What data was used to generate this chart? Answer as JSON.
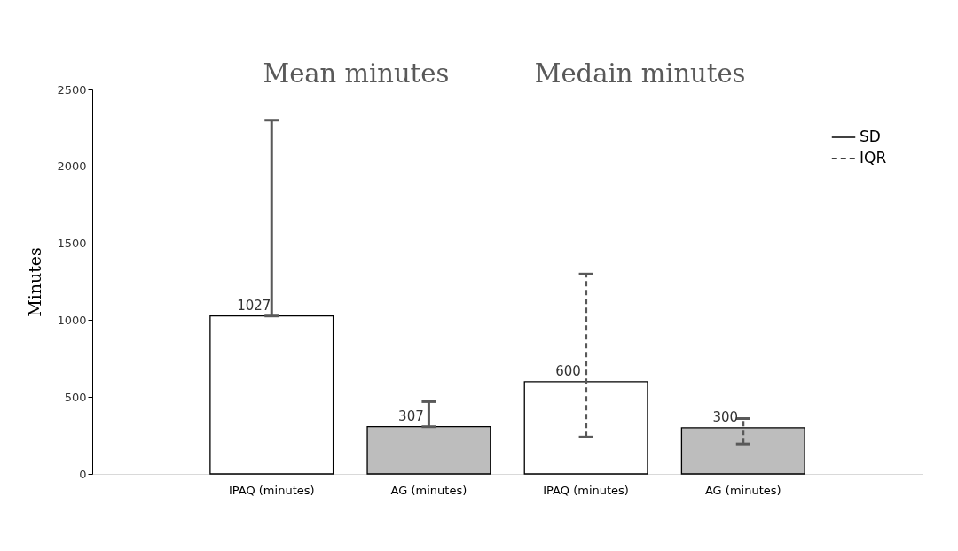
{
  "chart_data": {
    "type": "bar",
    "ylabel": "Minutes",
    "categories": [
      "IPAQ (minutes)",
      "AG (minutes)",
      "IPAQ (minutes)",
      "AG (minutes)"
    ],
    "series": [
      {
        "name": "SD",
        "line_style": "solid",
        "colors": [
          "#ffffff",
          "#bdbdbd",
          null,
          null
        ],
        "values": [
          1027,
          307,
          null,
          null
        ],
        "errors": [
          [
            1027,
            2300
          ],
          [
            307,
            470
          ],
          null,
          null
        ]
      },
      {
        "name": "IQR",
        "line_style": "dashed",
        "colors": [
          null,
          null,
          "#ffffff",
          "#bdbdbd"
        ],
        "values": [
          null,
          null,
          600,
          300
        ],
        "errors": [
          null,
          null,
          [
            240,
            1300
          ],
          [
            195,
            360
          ]
        ]
      }
    ],
    "ylim": [
      0,
      2500
    ],
    "yticks": [
      0,
      500,
      {
        "value": 1000,
        "label": "1000"
      },
      {
        "value": 1500,
        "label": "1500"
      },
      {
        "value": 2000,
        "label": "2000"
      },
      {
        "value": 2500,
        "label": "2500"
      }
    ],
    "grid": false,
    "data_labels": true,
    "legend": "top right",
    "annotations": [
      "Mean minutes",
      "Medain minutes"
    ]
  }
}
